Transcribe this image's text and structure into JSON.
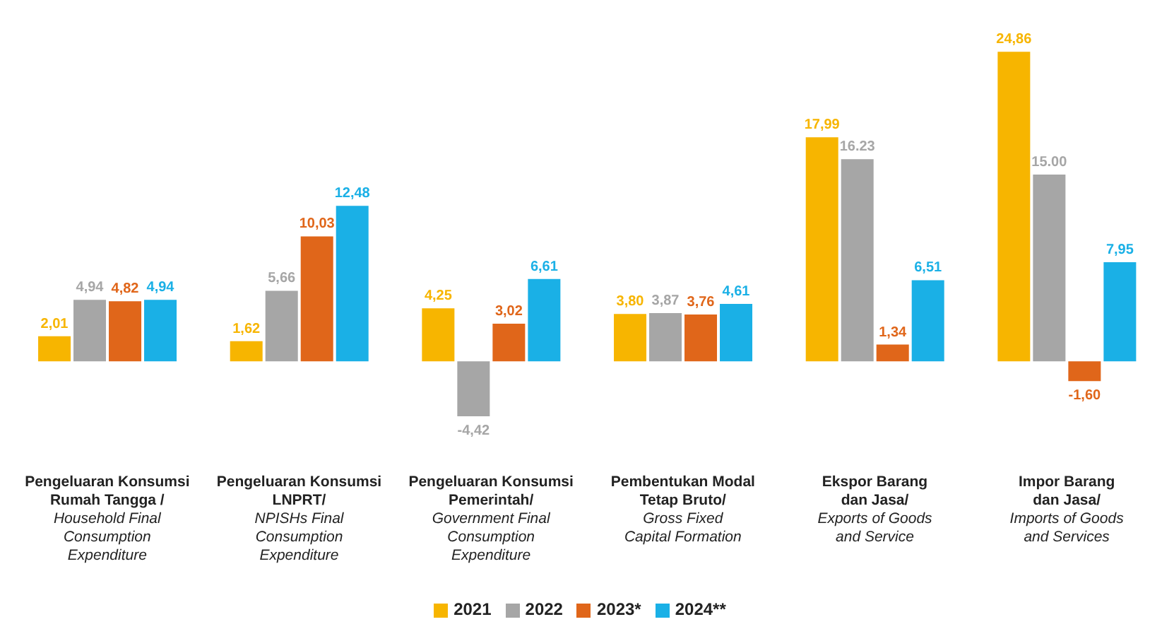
{
  "chart_data": {
    "type": "bar",
    "categories": [
      "Pengeluaran Konsumsi\nRumah Tangga /\nHousehold Final\nConsumption\nExpenditure",
      "Pengeluaran Konsumsi\nLNPRT/\nNPISHs Final\nConsumption\nExpenditure",
      "Pengeluaran Konsumsi\nPemerintah/\nGovernment Final\nConsumption\nExpenditure",
      "Pembentukan Modal\nTetap Bruto/\nGross Fixed\nCapital Formation",
      "Ekspor Barang\ndan Jasa/\nExports of Goods\nand Service",
      "Impor Barang\ndan Jasa/\nImports of Goods\nand Services"
    ],
    "series": [
      {
        "name": "2021",
        "color": "#f7b500",
        "values": [
          2.01,
          1.62,
          4.25,
          3.8,
          17.99,
          24.86
        ],
        "value_labels": [
          "2,01",
          "1,62",
          "4,25",
          "3,80",
          "17,99",
          "24,86"
        ]
      },
      {
        "name": "2022",
        "color": "#a6a6a6",
        "values": [
          4.94,
          5.66,
          -4.42,
          3.87,
          16.23,
          15.0
        ],
        "value_labels": [
          "4,94",
          "5,66",
          "-4,42",
          "3,87",
          "16.23",
          "15.00"
        ]
      },
      {
        "name": "2023*",
        "color": "#e0661a",
        "values": [
          4.82,
          10.03,
          3.02,
          3.76,
          1.34,
          -1.6
        ],
        "value_labels": [
          "4,82",
          "10,03",
          "3,02",
          "3,76",
          "1,34",
          "-1,60"
        ]
      },
      {
        "name": "2024**",
        "color": "#1ab0e6",
        "values": [
          4.94,
          12.48,
          6.61,
          4.61,
          6.51,
          7.95
        ],
        "value_labels": [
          "4,94",
          "12,48",
          "6,61",
          "4,61",
          "6,51",
          "7,95"
        ]
      }
    ],
    "legend": "bottom",
    "grid": false
  }
}
